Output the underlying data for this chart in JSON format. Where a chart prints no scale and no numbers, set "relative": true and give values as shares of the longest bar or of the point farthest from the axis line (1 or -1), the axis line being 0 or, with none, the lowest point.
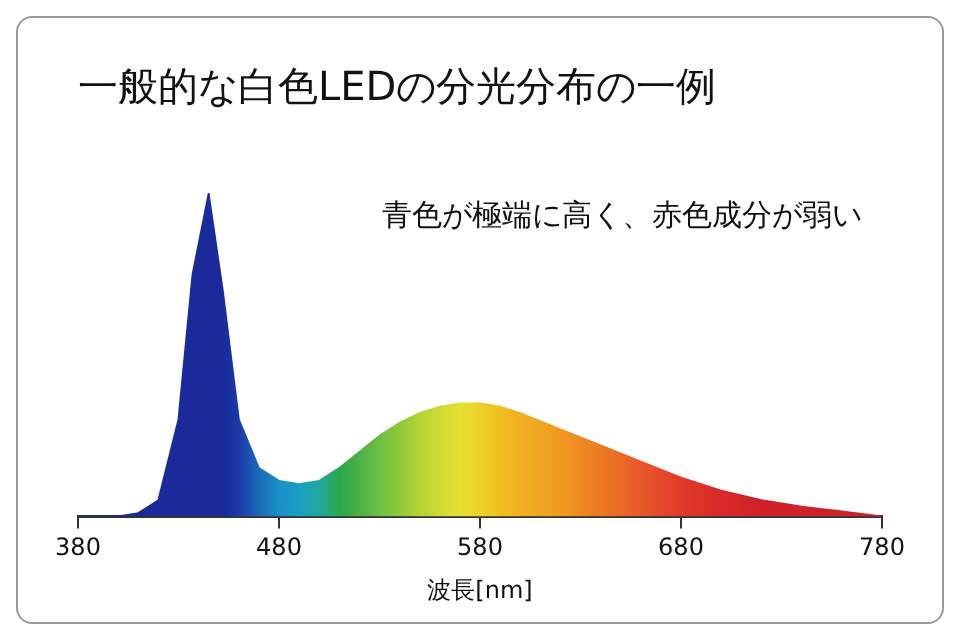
{
  "chart_data": {
    "type": "area",
    "title": "一般的な白色LEDの分光分布の一例",
    "xlabel": "波長[nm]",
    "annotations": [
      "青色が極端に高く、赤色成分が弱い"
    ],
    "relative": true,
    "grid": false,
    "xlim": [
      380,
      780
    ],
    "xticks": [
      380,
      480,
      580,
      680,
      780
    ],
    "x": [
      380,
      400,
      410,
      420,
      430,
      437,
      445,
      452,
      460,
      470,
      480,
      490,
      500,
      510,
      520,
      530,
      540,
      550,
      560,
      570,
      580,
      590,
      600,
      620,
      640,
      660,
      680,
      700,
      720,
      740,
      760,
      780
    ],
    "values": [
      0,
      0,
      0.01,
      0.05,
      0.3,
      0.75,
      1,
      0.7,
      0.3,
      0.15,
      0.11,
      0.1,
      0.11,
      0.15,
      0.2,
      0.25,
      0.29,
      0.32,
      0.34,
      0.35,
      0.35,
      0.34,
      0.32,
      0.27,
      0.22,
      0.17,
      0.12,
      0.08,
      0.05,
      0.03,
      0.015,
      0
    ],
    "colors": [
      "#1a2a9a",
      "#1a2a9a",
      "#1a2a9a",
      "#1a2a9a",
      "#1a2a9a",
      "#1a2a9a",
      "#1a2a9a",
      "#1a2a9a",
      "#1a3aa8",
      "#1a6ab8",
      "#1a8fc9",
      "#1a9fc0",
      "#22a8a0",
      "#2aa84a",
      "#4cb045",
      "#6cc043",
      "#90c83a",
      "#b5d334",
      "#d0da33",
      "#e6e032",
      "#ecd02a",
      "#f0c020",
      "#f0b020",
      "#f09a20",
      "#ec7a22",
      "#e8582a",
      "#e03a2a",
      "#d82a2a",
      "#d0202a",
      "#d0202a",
      "#d0202a",
      "#d0202a"
    ]
  }
}
